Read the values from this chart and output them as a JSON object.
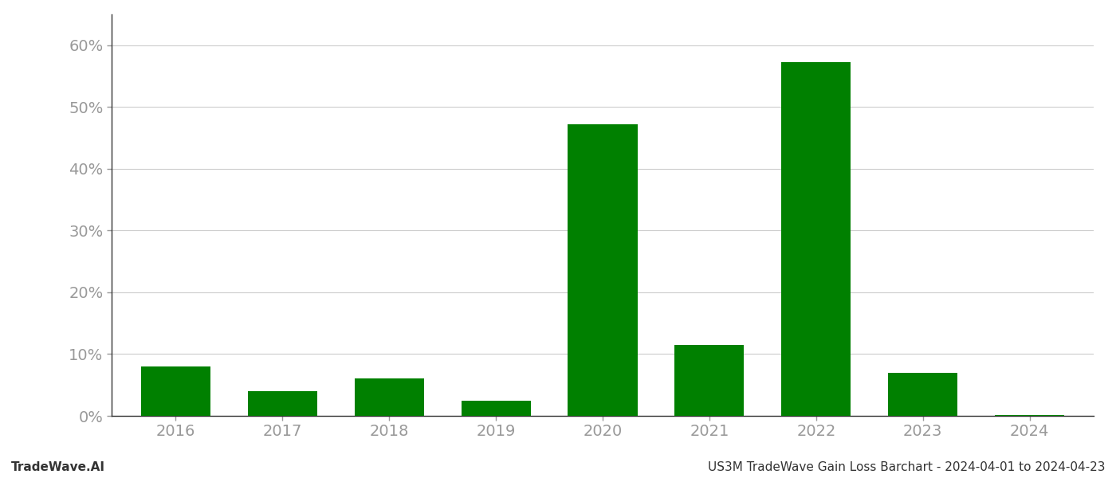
{
  "categories": [
    "2016",
    "2017",
    "2018",
    "2019",
    "2020",
    "2021",
    "2022",
    "2023",
    "2024"
  ],
  "values": [
    0.08,
    0.04,
    0.06,
    0.025,
    0.472,
    0.115,
    0.572,
    0.07,
    0.001
  ],
  "bar_color": "#008000",
  "background_color": "#ffffff",
  "grid_color": "#cccccc",
  "ylabel_ticks": [
    0.0,
    0.1,
    0.2,
    0.3,
    0.4,
    0.5,
    0.6
  ],
  "ylim": [
    0,
    0.65
  ],
  "footer_left": "TradeWave.AI",
  "footer_right": "US3M TradeWave Gain Loss Barchart - 2024-04-01 to 2024-04-23",
  "footer_fontsize": 11,
  "tick_fontsize": 14,
  "bar_width": 0.65,
  "tick_color": "#999999",
  "spine_color": "#333333",
  "footer_color": "#333333"
}
